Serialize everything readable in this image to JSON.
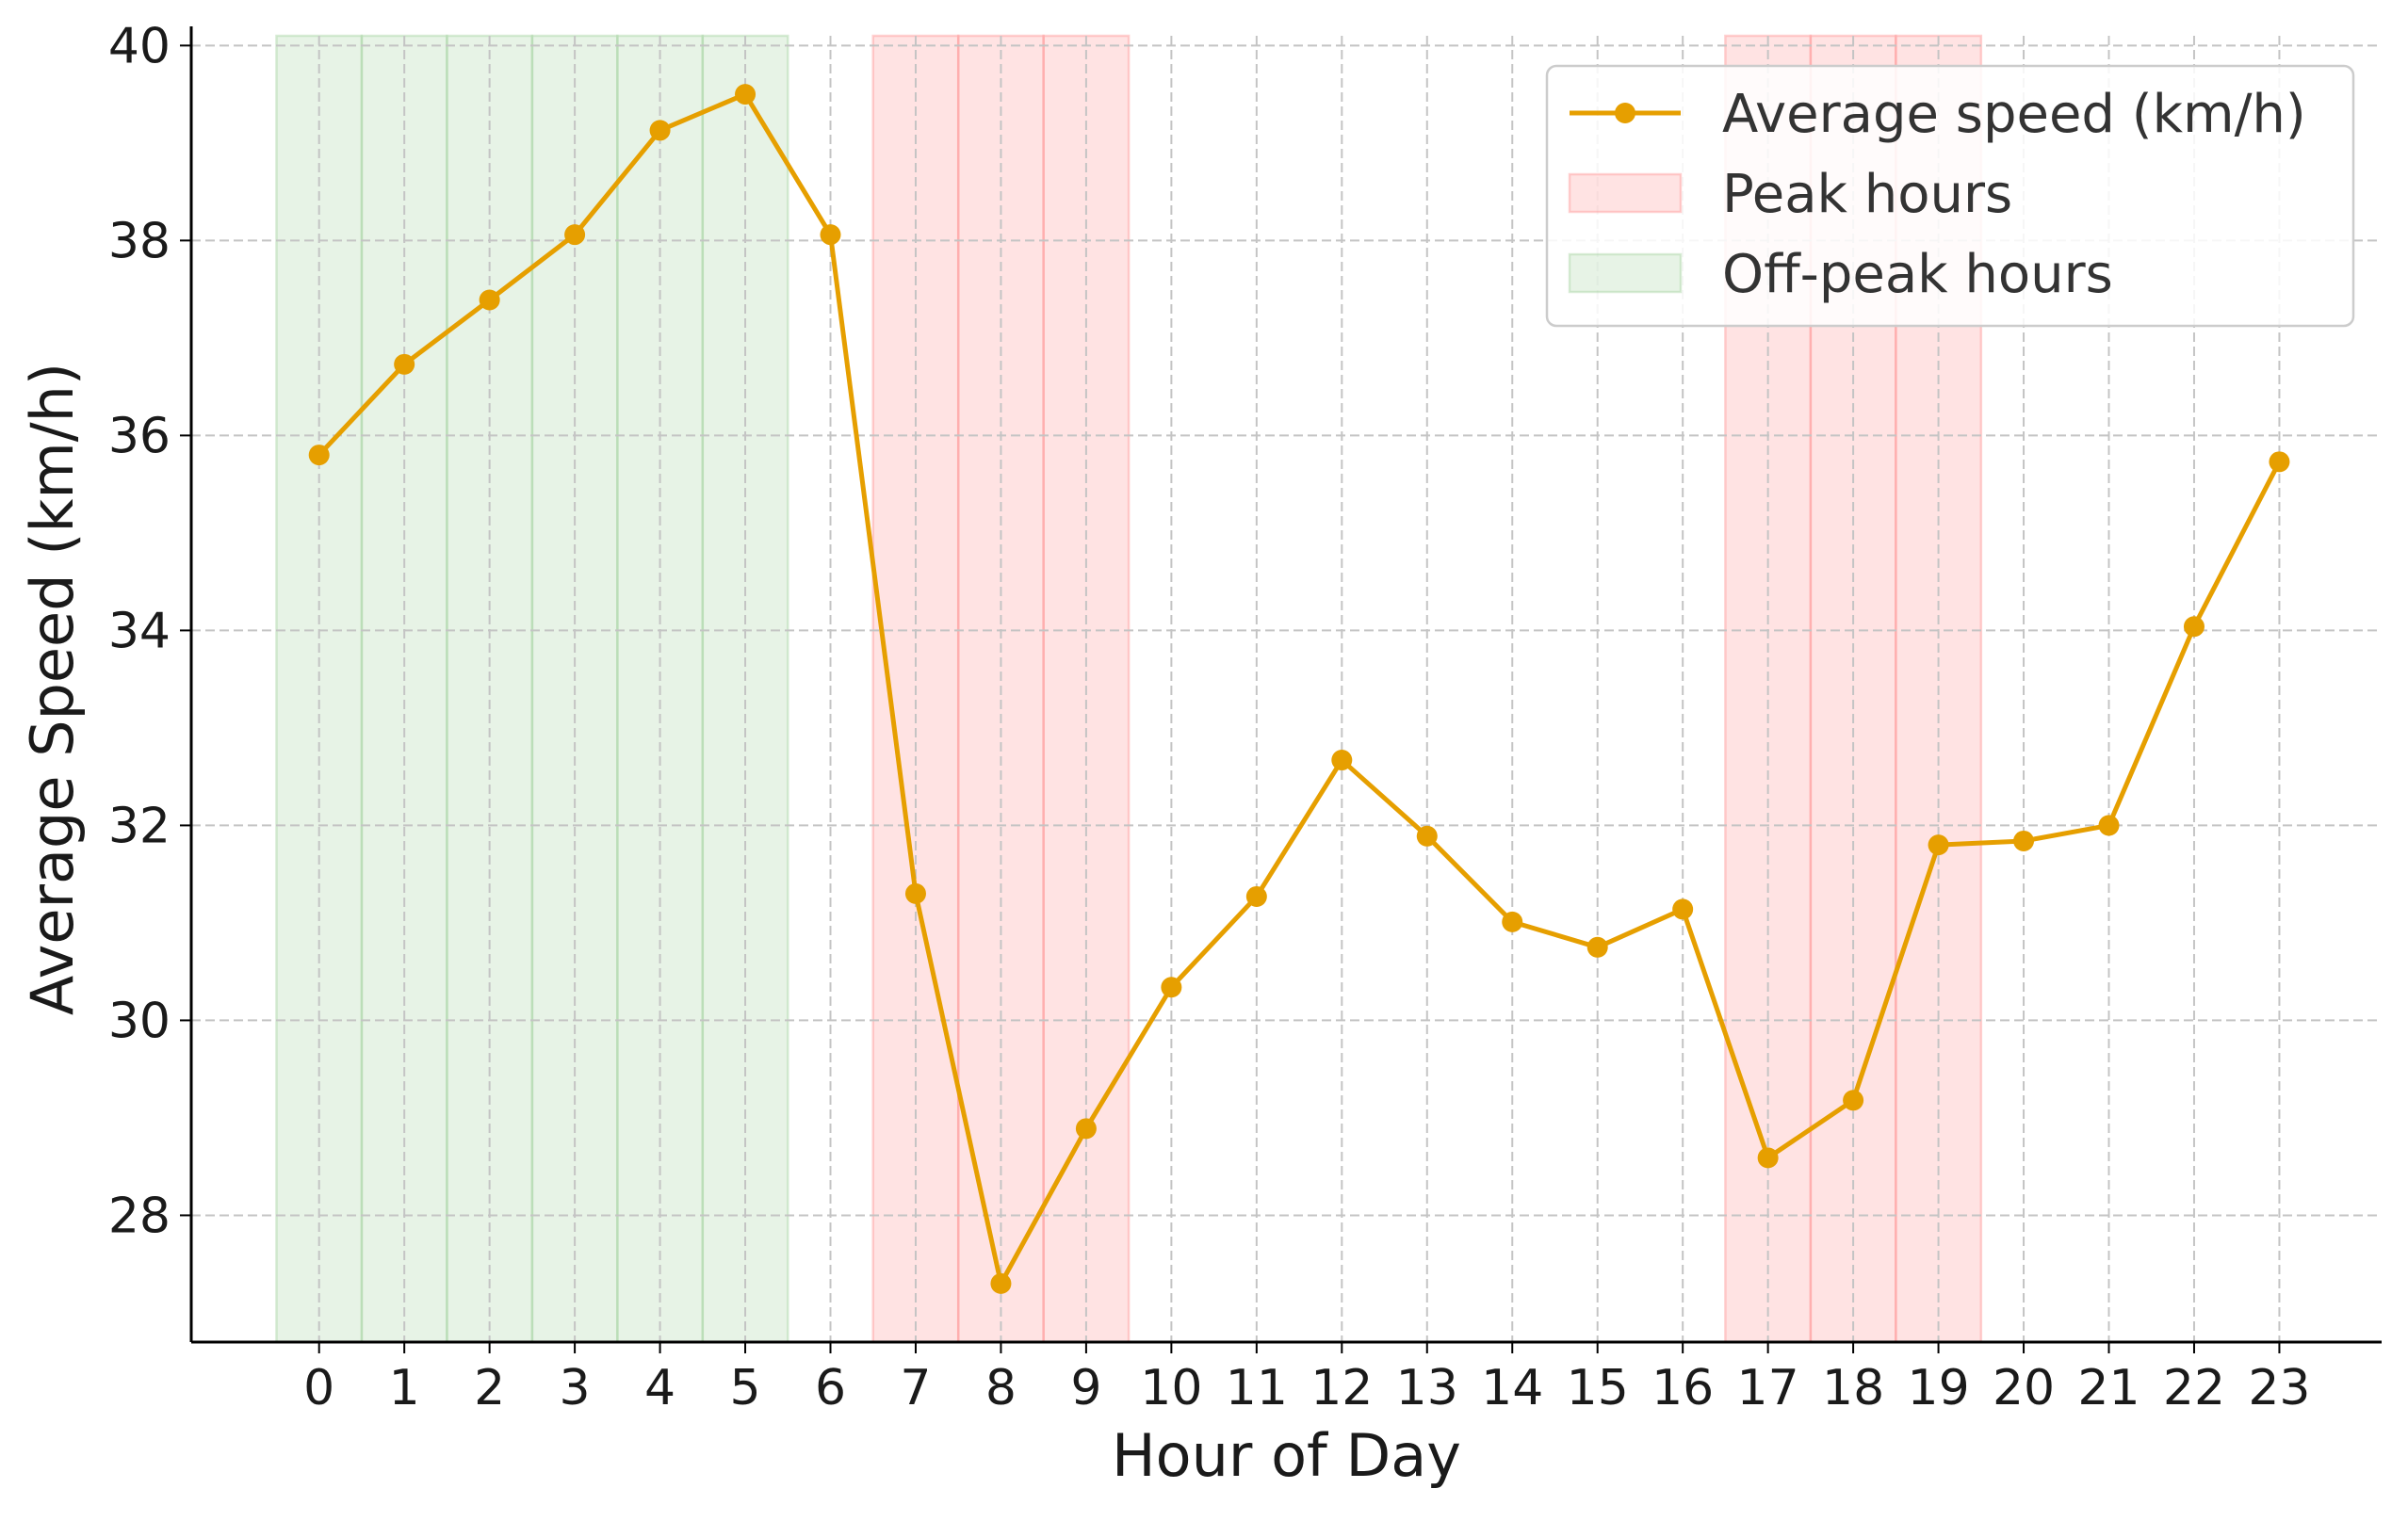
{
  "chart_data": {
    "type": "line",
    "title": "",
    "xlabel": "Hour of Day",
    "ylabel": "Average Speed (km/h)",
    "x": [
      0,
      1,
      2,
      3,
      4,
      5,
      6,
      7,
      8,
      9,
      10,
      11,
      12,
      13,
      14,
      15,
      16,
      17,
      18,
      19,
      20,
      21,
      22,
      23
    ],
    "x_tick_labels": [
      "0",
      "1",
      "2",
      "3",
      "4",
      "5",
      "6",
      "7",
      "8",
      "9",
      "10",
      "11",
      "12",
      "13",
      "14",
      "15",
      "16",
      "17",
      "18",
      "19",
      "20",
      "21",
      "22",
      "23"
    ],
    "y_ticks": [
      28,
      30,
      32,
      34,
      36,
      38,
      40
    ],
    "y_tick_labels": [
      "28",
      "30",
      "32",
      "34",
      "36",
      "38",
      "40"
    ],
    "xlim": [
      -1.5,
      24.2
    ],
    "ylim": [
      26.7,
      40.1
    ],
    "grid": true,
    "legend_position": "top-right",
    "series": [
      {
        "name": "Average speed (km/h)",
        "color": "#E69F00",
        "marker": "circle",
        "values": [
          35.8,
          36.73,
          37.39,
          38.06,
          39.13,
          39.5,
          38.06,
          31.3,
          27.3,
          28.89,
          30.34,
          31.27,
          32.67,
          31.89,
          31.01,
          30.75,
          31.14,
          28.59,
          29.18,
          31.8,
          31.84,
          32.0,
          34.04,
          35.73
        ]
      }
    ],
    "shaded_regions": [
      {
        "name": "Peak hours",
        "color": "#FF9999",
        "hours": [
          7,
          8,
          9,
          17,
          18,
          19
        ]
      },
      {
        "name": "Off-peak hours",
        "color": "#A9D5A4",
        "hours": [
          0,
          1,
          2,
          3,
          4,
          5
        ]
      }
    ],
    "legend": [
      {
        "label": "Average speed (km/h)",
        "kind": "line-marker",
        "color": "#E69F00"
      },
      {
        "label": "Peak hours",
        "kind": "patch",
        "color": "#FF9999"
      },
      {
        "label": "Off-peak hours",
        "kind": "patch",
        "color": "#A9D5A4"
      }
    ]
  }
}
